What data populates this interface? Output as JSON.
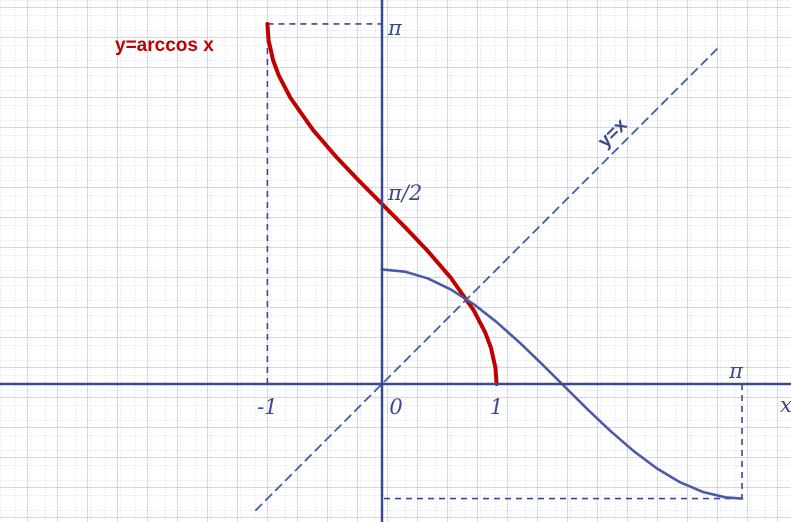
{
  "chart_data": {
    "type": "line",
    "title": "",
    "xlabel": "x",
    "ylabel": "",
    "xlim": [
      -3.2,
      3.4
    ],
    "ylim": [
      -1.05,
      3.3
    ],
    "grid": true,
    "x_ticks": [
      {
        "value": -1,
        "label": "-1"
      },
      {
        "value": 0,
        "label": "0"
      },
      {
        "value": 1,
        "label": "1"
      },
      {
        "value": 3.1416,
        "label": "π"
      }
    ],
    "y_ticks": [
      {
        "value": 1.5708,
        "label": "π/2"
      },
      {
        "value": 3.1416,
        "label": "π"
      }
    ],
    "series": [
      {
        "name": "y=arccos x",
        "color": "#c00000",
        "x": [
          -1,
          -0.99,
          -0.95,
          -0.9,
          -0.8,
          -0.6,
          -0.4,
          -0.2,
          0,
          0.2,
          0.4,
          0.6,
          0.8,
          0.9,
          0.95,
          0.99,
          1
        ],
        "y": [
          3.1416,
          3.0001,
          2.824,
          2.6906,
          2.4981,
          2.2143,
          1.9823,
          1.7722,
          1.5708,
          1.3694,
          1.1593,
          0.9273,
          0.6435,
          0.451,
          0.3176,
          0.1415,
          0
        ]
      },
      {
        "name": "",
        "color": "#4a5aa8",
        "x": [
          0,
          0.2,
          0.4,
          0.6,
          0.8,
          1.0,
          1.2,
          1.4,
          1.5708,
          1.8,
          2.0,
          2.2,
          2.4,
          2.6,
          2.8,
          3.0,
          3.1416
        ],
        "y": [
          1,
          0.9801,
          0.9211,
          0.8253,
          0.6967,
          0.5403,
          0.3624,
          0.17,
          0,
          -0.2272,
          -0.4161,
          -0.5885,
          -0.7374,
          -0.8569,
          -0.9422,
          -0.99,
          -1
        ]
      },
      {
        "name": "y=x",
        "color": "#4a5aa8",
        "style": "dashed",
        "x": [
          -1.1,
          2.95
        ],
        "y": [
          -1.1,
          2.95
        ]
      }
    ],
    "guides": [
      {
        "from": [
          -1,
          0
        ],
        "to": [
          -1,
          3.1416
        ]
      },
      {
        "from": [
          -1,
          3.1416
        ],
        "to": [
          0,
          3.1416
        ]
      },
      {
        "from": [
          3.1416,
          0
        ],
        "to": [
          3.1416,
          -1
        ]
      },
      {
        "from": [
          3.1416,
          -1
        ],
        "to": [
          0,
          -1
        ]
      }
    ],
    "annotations": [
      {
        "text": "y=arccos x",
        "color": "#c00000"
      },
      {
        "text": "y=x",
        "color": "#3a4a8c"
      }
    ]
  }
}
